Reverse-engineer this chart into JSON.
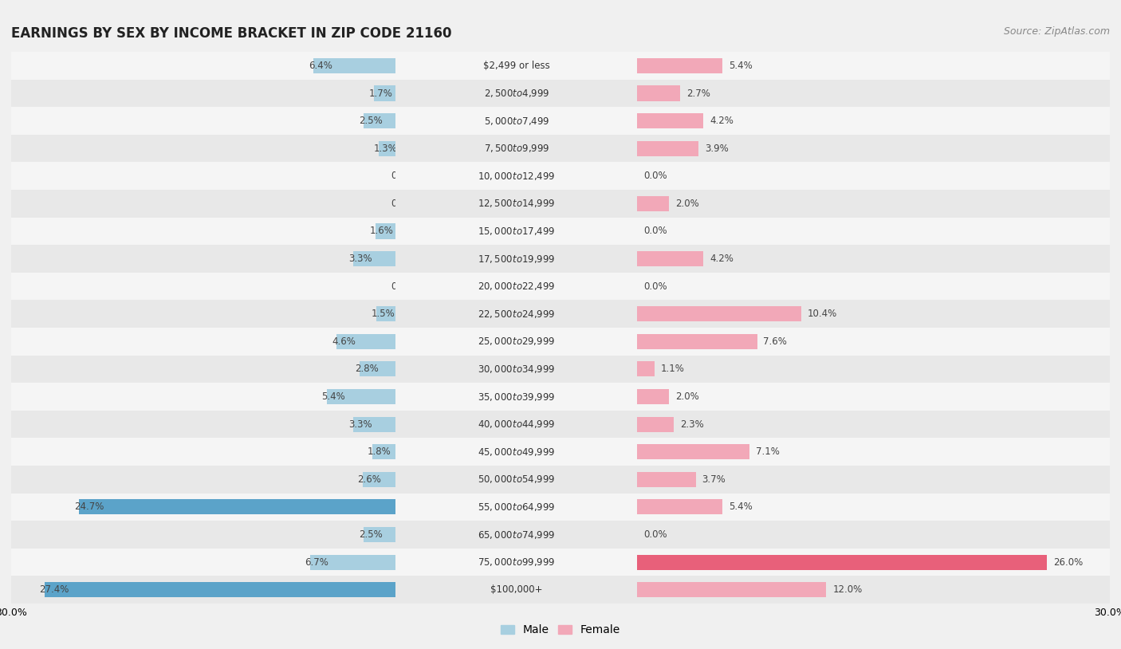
{
  "title": "EARNINGS BY SEX BY INCOME BRACKET IN ZIP CODE 21160",
  "source": "Source: ZipAtlas.com",
  "categories": [
    "$2,499 or less",
    "$2,500 to $4,999",
    "$5,000 to $7,499",
    "$7,500 to $9,999",
    "$10,000 to $12,499",
    "$12,500 to $14,999",
    "$15,000 to $17,499",
    "$17,500 to $19,999",
    "$20,000 to $22,499",
    "$22,500 to $24,999",
    "$25,000 to $29,999",
    "$30,000 to $34,999",
    "$35,000 to $39,999",
    "$40,000 to $44,999",
    "$45,000 to $49,999",
    "$50,000 to $54,999",
    "$55,000 to $64,999",
    "$65,000 to $74,999",
    "$75,000 to $99,999",
    "$100,000+"
  ],
  "male_values": [
    6.4,
    1.7,
    2.5,
    1.3,
    0.0,
    0.0,
    1.6,
    3.3,
    0.0,
    1.5,
    4.6,
    2.8,
    5.4,
    3.3,
    1.8,
    2.6,
    24.7,
    2.5,
    6.7,
    27.4
  ],
  "female_values": [
    5.4,
    2.7,
    4.2,
    3.9,
    0.0,
    2.0,
    0.0,
    4.2,
    0.0,
    10.4,
    7.6,
    1.1,
    2.0,
    2.3,
    7.1,
    3.7,
    5.4,
    0.0,
    26.0,
    12.0
  ],
  "male_color": "#a8cfe0",
  "female_color": "#f2a8b8",
  "male_highlight_color": "#5ba3c9",
  "female_highlight_color": "#e8607a",
  "row_color_even": "#f5f5f5",
  "row_color_odd": "#e8e8e8",
  "background_color": "#f0f0f0",
  "axis_limit": 30.0,
  "legend_male": "Male",
  "legend_female": "Female",
  "title_fontsize": 12,
  "label_fontsize": 8.5,
  "cat_fontsize": 8.5,
  "source_fontsize": 9
}
